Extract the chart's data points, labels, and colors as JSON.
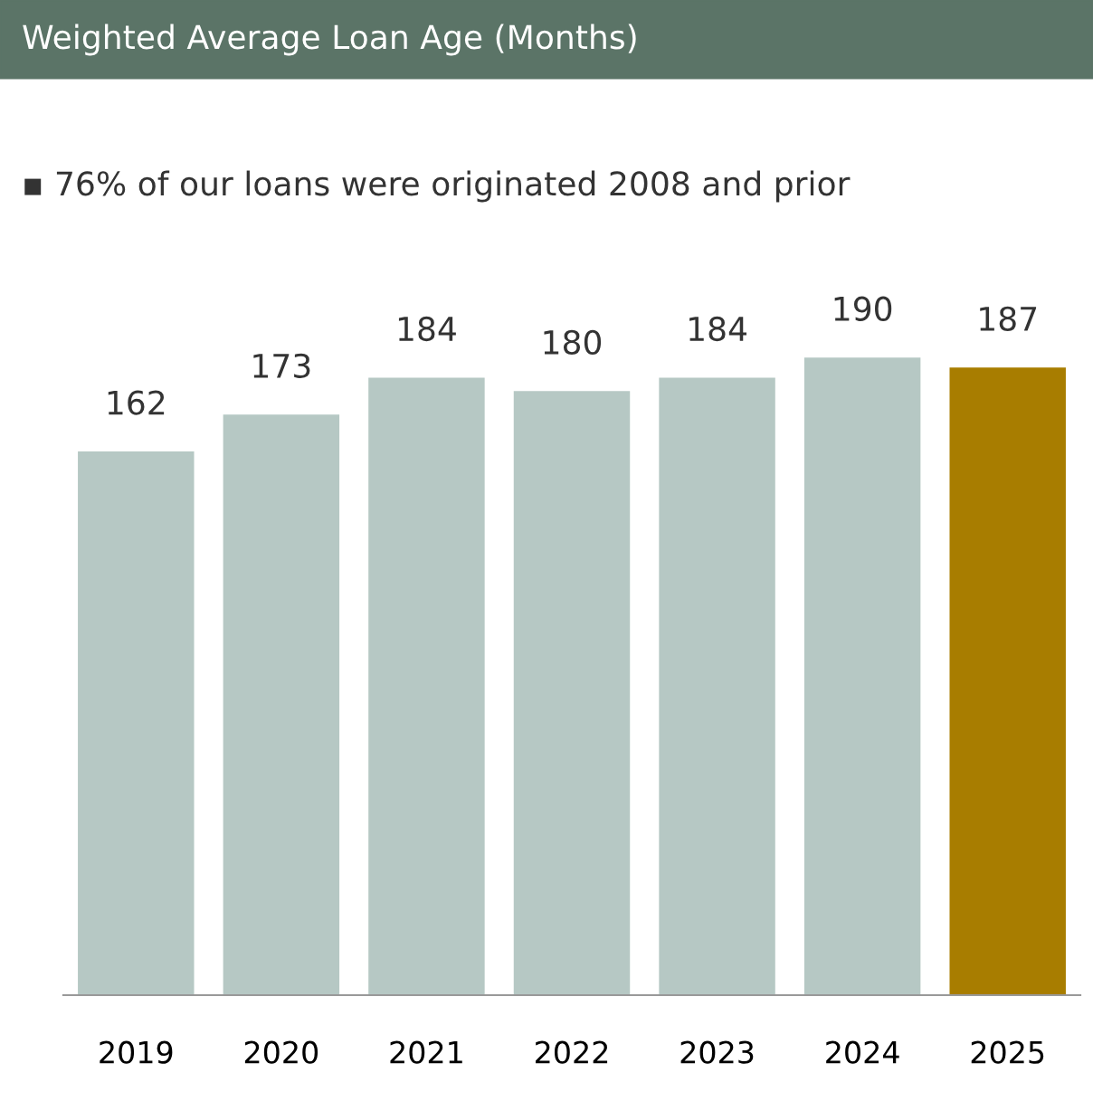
{
  "chart_data": {
    "type": "bar",
    "title": "Weighted Average Loan Age (Months)",
    "subtitle": "▪ 76% of our loans were originated 2008 and prior",
    "categories": [
      "2019",
      "2020",
      "2021",
      "2022",
      "2023",
      "2024",
      "2025"
    ],
    "values": [
      162,
      173,
      184,
      180,
      184,
      190,
      187
    ],
    "colors": [
      "#b6c8c4",
      "#b6c8c4",
      "#b6c8c4",
      "#b6c8c4",
      "#b6c8c4",
      "#b6c8c4",
      "#a87d00"
    ],
    "tick_labels": "x",
    "data_labels": true,
    "grid": false,
    "legend": false
  }
}
